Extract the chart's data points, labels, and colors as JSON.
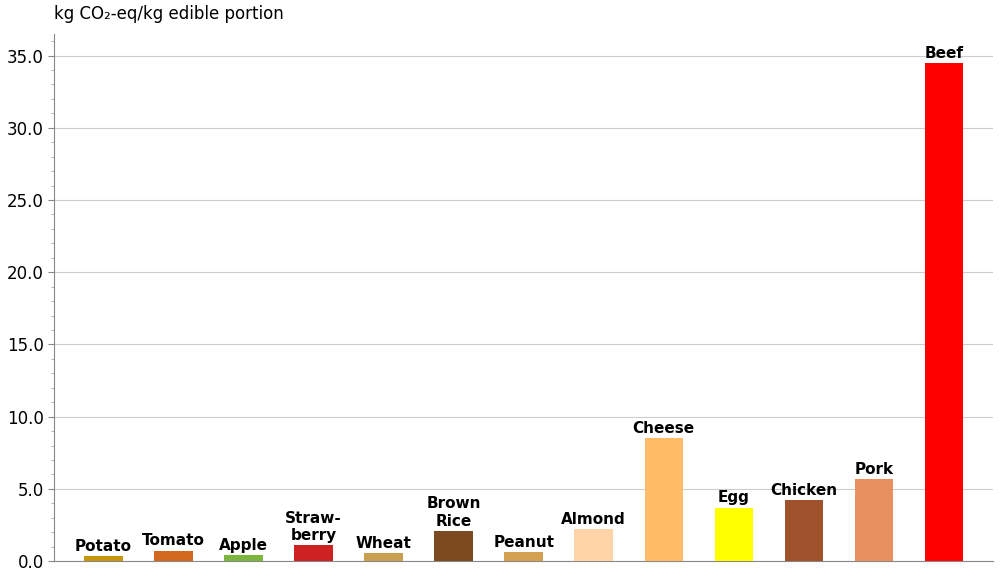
{
  "categories": [
    "Potato",
    "Tomato",
    "Apple",
    "Straw-\nberry",
    "Wheat",
    "Brown\nRice",
    "Peanut",
    "Almond",
    "Cheese",
    "Egg",
    "Chicken",
    "Pork",
    "Beef"
  ],
  "values": [
    0.35,
    0.72,
    0.43,
    1.1,
    0.55,
    2.1,
    0.6,
    2.2,
    8.5,
    3.7,
    4.2,
    5.7,
    34.5
  ],
  "colors": [
    "#C8960C",
    "#D2691E",
    "#7CB53C",
    "#CC2222",
    "#C8A050",
    "#7B4A1E",
    "#D2A050",
    "#FFD5A8",
    "#FFBB66",
    "#FFFF00",
    "#A0522D",
    "#E89060",
    "#FF0000"
  ],
  "label_names": [
    "Potato",
    "Tomato",
    "Apple",
    "Straw-\nberry",
    "Wheat",
    "Brown\nRice",
    "Peanut",
    "Almond",
    "Cheese",
    "Egg",
    "Chicken",
    "Pork",
    "Beef"
  ],
  "ylabel": "kg CO₂-eq/kg edible portion",
  "ylim": [
    0,
    36.5
  ],
  "yticks_major": [
    0.0,
    5.0,
    10.0,
    15.0,
    20.0,
    25.0,
    30.0,
    35.0
  ],
  "background_color": "#FFFFFF",
  "label_fontsize": 11,
  "ylabel_fontsize": 12,
  "bar_width": 0.55
}
